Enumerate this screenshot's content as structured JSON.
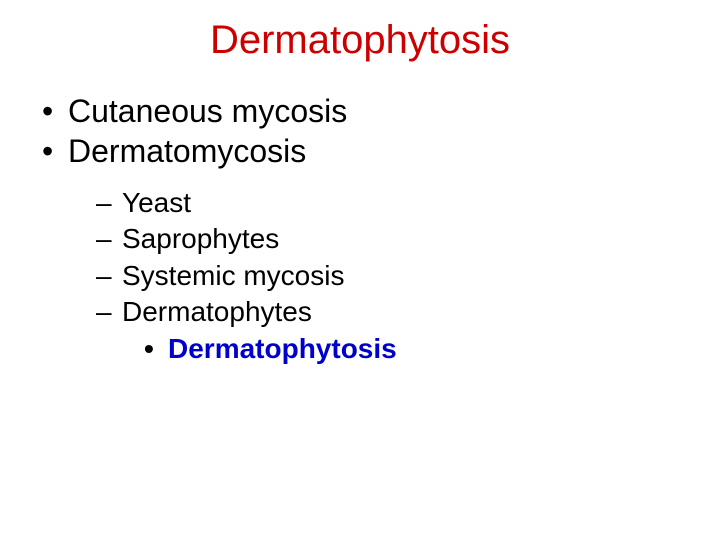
{
  "title": {
    "text": "Dermatophytosis",
    "color": "#cc0000",
    "fontsize": 40
  },
  "bullets_l1": [
    {
      "text": "Cutaneous mycosis"
    },
    {
      "text": "Dermatomycosis"
    }
  ],
  "bullets_l2": [
    {
      "text": "Yeast"
    },
    {
      "text": "Saprophytes"
    },
    {
      "text": "Systemic mycosis"
    },
    {
      "text": "Dermatophytes"
    }
  ],
  "bullets_l3": [
    {
      "text": "Dermatophytosis",
      "color": "#0000cc"
    }
  ],
  "colors": {
    "background": "#ffffff",
    "body_text": "#000000"
  },
  "typography": {
    "family": "Arial",
    "title_fontsize": 40,
    "l1_fontsize": 32,
    "l2_fontsize": 28,
    "l3_fontsize": 28,
    "l3_weight": "bold"
  }
}
